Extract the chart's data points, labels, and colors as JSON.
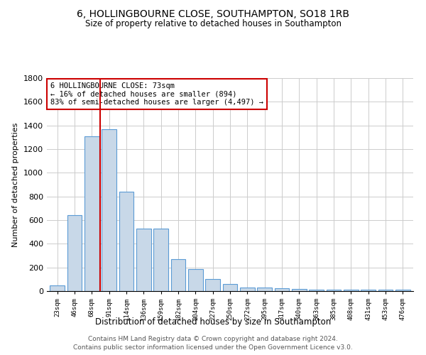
{
  "title": "6, HOLLINGBOURNE CLOSE, SOUTHAMPTON, SO18 1RB",
  "subtitle": "Size of property relative to detached houses in Southampton",
  "xlabel": "Distribution of detached houses by size in Southampton",
  "ylabel": "Number of detached properties",
  "categories": [
    "23sqm",
    "46sqm",
    "68sqm",
    "91sqm",
    "114sqm",
    "136sqm",
    "159sqm",
    "182sqm",
    "204sqm",
    "227sqm",
    "250sqm",
    "272sqm",
    "295sqm",
    "317sqm",
    "340sqm",
    "363sqm",
    "385sqm",
    "408sqm",
    "431sqm",
    "453sqm",
    "476sqm"
  ],
  "values": [
    50,
    640,
    1310,
    1370,
    840,
    530,
    530,
    270,
    185,
    100,
    60,
    30,
    30,
    25,
    20,
    15,
    10,
    10,
    10,
    10,
    10
  ],
  "bar_color": "#c8d8e8",
  "bar_edge_color": "#5b9bd5",
  "vline_color": "#cc0000",
  "vline_pos": 2.5,
  "ylim": [
    0,
    1800
  ],
  "yticks": [
    0,
    200,
    400,
    600,
    800,
    1000,
    1200,
    1400,
    1600,
    1800
  ],
  "annotation_box_text": "6 HOLLINGBOURNE CLOSE: 73sqm\n← 16% of detached houses are smaller (894)\n83% of semi-detached houses are larger (4,497) →",
  "annotation_box_color": "#cc0000",
  "footer1": "Contains HM Land Registry data © Crown copyright and database right 2024.",
  "footer2": "Contains public sector information licensed under the Open Government Licence v3.0.",
  "background_color": "#ffffff",
  "grid_color": "#cccccc"
}
